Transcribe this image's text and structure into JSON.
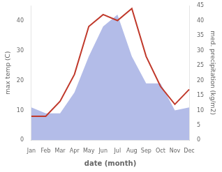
{
  "chart_data": {
    "type": "line",
    "categories": [
      "Jan",
      "Feb",
      "Mar",
      "Apr",
      "May",
      "Jun",
      "Jul",
      "Aug",
      "Sep",
      "Oct",
      "Nov",
      "Dec"
    ],
    "series": [
      {
        "type": "area",
        "axis": "y2",
        "color": "#b3bce8",
        "values": [
          11,
          9,
          9,
          16,
          28,
          38,
          42,
          28,
          19,
          19,
          10,
          11
        ]
      },
      {
        "type": "line",
        "color": "#c0392b",
        "values": [
          8,
          8,
          13,
          22,
          38,
          42,
          40,
          44,
          28,
          18,
          12,
          17
        ]
      }
    ],
    "xlabel": "date (month)",
    "ylabel": "max temp (C)",
    "y2label": "med. precipitation (kg/m2)",
    "ylim": [
      0,
      45
    ],
    "yticks": [
      0,
      10,
      20,
      30,
      40
    ],
    "y2lim": [
      0,
      45
    ],
    "y2ticks": [
      0,
      5,
      10,
      15,
      20,
      25,
      30,
      35,
      40,
      45
    ],
    "grid": false
  }
}
